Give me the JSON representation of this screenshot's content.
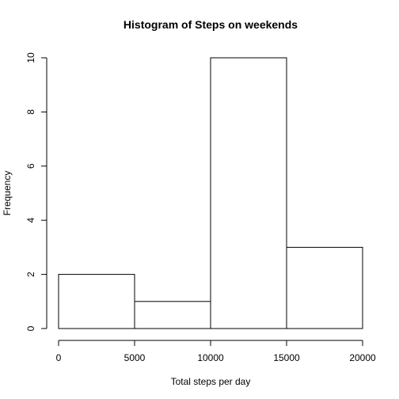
{
  "chart_data": {
    "type": "bar",
    "title": "Histogram of Steps on weekends",
    "xlabel": "Total steps per day",
    "ylabel": "Frequency",
    "bins": [
      {
        "start": 0,
        "end": 5000,
        "value": 2
      },
      {
        "start": 5000,
        "end": 10000,
        "value": 1
      },
      {
        "start": 10000,
        "end": 15000,
        "value": 10
      },
      {
        "start": 15000,
        "end": 20000,
        "value": 3
      }
    ],
    "xlim": [
      0,
      20000
    ],
    "ylim": [
      0,
      10
    ],
    "x_ticks": [
      0,
      5000,
      10000,
      15000,
      20000
    ],
    "y_ticks": [
      0,
      2,
      4,
      6,
      8,
      10
    ],
    "grid": false,
    "bar_fill": "#ffffff",
    "bar_stroke": "#000000"
  }
}
